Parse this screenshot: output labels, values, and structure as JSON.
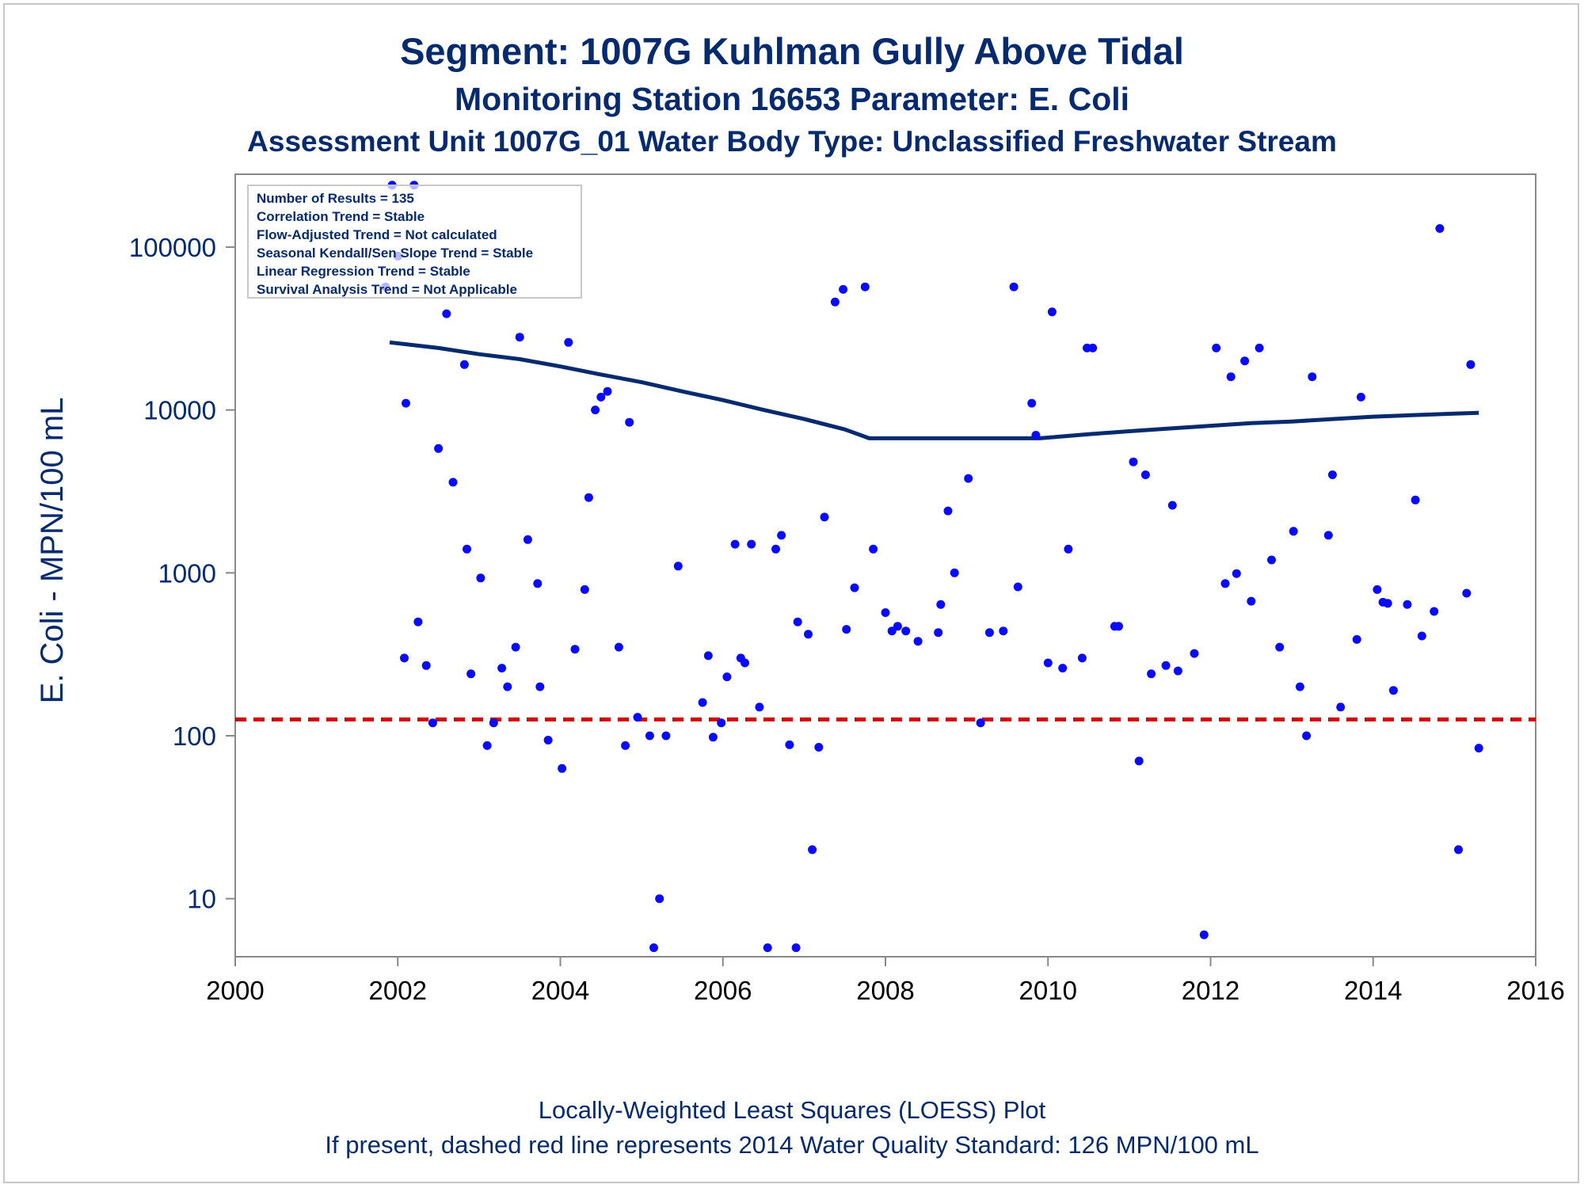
{
  "chart_data": {
    "type": "scatter",
    "title": "Segment: 1007G  Kuhlman Gully Above Tidal",
    "subtitle": "Monitoring Station 16653 Parameter: E. Coli",
    "subtitle2": "Assessment Unit 1007G_01   Water Body Type: Unclassified Freshwater Stream",
    "ylabel": "E. Coli - MPN/100 mL",
    "xlabel": "",
    "footnote1": "Locally-Weighted Least Squares (LOESS) Plot",
    "footnote2": "If present, dashed red line represents 2014 Water Quality Standard: 126 MPN/100 mL",
    "x_scale": "year",
    "y_scale": "log",
    "xlim": [
      2000,
      2016
    ],
    "ylim": [
      4.4,
      280000
    ],
    "x_ticks": [
      "2000",
      "2002",
      "2004",
      "2006",
      "2008",
      "2010",
      "2012",
      "2014",
      "2016"
    ],
    "y_ticks": [
      "10",
      "100",
      "1000",
      "10000",
      "100000"
    ],
    "grid": false,
    "legend": {
      "placement": "top-left",
      "lines": [
        "Number of Results = 135",
        "Correlation Trend = Stable",
        "Flow-Adjusted Trend = Not calculated",
        "Seasonal Kendall/Sen Slope Trend = Stable",
        "Linear Regression Trend = Stable",
        "Survival Analysis Trend = Not Applicable"
      ]
    },
    "colors": {
      "points": "#0a0aff",
      "loess": "#062a6e",
      "standard": "#d40000",
      "text": "#062a6e",
      "axis": "#888888"
    },
    "standard_line": {
      "value": 126,
      "style": "dashed"
    },
    "loess": {
      "name": "",
      "points": [
        [
          2001.9,
          26000
        ],
        [
          2002.5,
          24000
        ],
        [
          2003.0,
          22000
        ],
        [
          2003.5,
          20500
        ],
        [
          2004.0,
          18500
        ],
        [
          2004.5,
          16500
        ],
        [
          2005.0,
          14800
        ],
        [
          2005.5,
          13000
        ],
        [
          2006.0,
          11500
        ],
        [
          2006.5,
          10000
        ],
        [
          2007.0,
          8800
        ],
        [
          2007.5,
          7600
        ],
        [
          2007.8,
          6700
        ],
        [
          2008.5,
          6700
        ],
        [
          2009.2,
          6700
        ],
        [
          2009.9,
          6700
        ],
        [
          2010.5,
          7100
        ],
        [
          2011.0,
          7400
        ],
        [
          2011.5,
          7700
        ],
        [
          2012.0,
          8000
        ],
        [
          2012.5,
          8300
        ],
        [
          2013.0,
          8500
        ],
        [
          2013.5,
          8800
        ],
        [
          2014.0,
          9100
        ],
        [
          2014.5,
          9300
        ],
        [
          2015.0,
          9500
        ],
        [
          2015.3,
          9600
        ]
      ]
    },
    "series": [
      {
        "name": "",
        "x": [
          2001.93,
          2002.0,
          2002.08,
          2002.1,
          2002.2,
          2002.25,
          2002.35,
          2002.43,
          2002.5,
          2002.6,
          2002.68,
          2002.82,
          2002.85,
          2002.9,
          2003.02,
          2003.1,
          2003.18,
          2003.28,
          2003.35,
          2003.45,
          2003.5,
          2003.6,
          2003.72,
          2003.75,
          2003.85,
          2004.02,
          2004.1,
          2004.18,
          2004.3,
          2004.35,
          2004.43,
          2004.5,
          2004.58,
          2004.72,
          2004.8,
          2004.85,
          2004.95,
          2005.1,
          2005.15,
          2005.22,
          2005.3,
          2005.45,
          2005.75,
          2005.82,
          2005.88,
          2005.98,
          2006.05,
          2006.15,
          2006.22,
          2006.27,
          2006.35,
          2006.45,
          2006.55,
          2006.65,
          2006.72,
          2006.82,
          2006.9,
          2006.92,
          2007.05,
          2007.1,
          2007.18,
          2007.25,
          2007.38,
          2007.48,
          2007.52,
          2007.62,
          2007.75,
          2007.85,
          2008.0,
          2008.08,
          2008.15,
          2008.25,
          2008.4,
          2008.65,
          2008.68,
          2008.77,
          2008.85,
          2009.02,
          2009.17,
          2009.28,
          2009.45,
          2009.58,
          2009.63,
          2009.8,
          2009.85,
          2010.0,
          2010.05,
          2010.18,
          2010.25,
          2010.42,
          2010.48,
          2010.55,
          2010.82,
          2010.87,
          2011.05,
          2011.12,
          2011.2,
          2011.27,
          2011.45,
          2011.53,
          2011.6,
          2011.8,
          2011.92,
          2012.07,
          2012.18,
          2012.25,
          2012.32,
          2012.42,
          2012.5,
          2012.6,
          2012.75,
          2012.85,
          2013.02,
          2013.1,
          2013.18,
          2013.25,
          2013.45,
          2013.5,
          2013.6,
          2013.8,
          2013.85,
          2014.05,
          2014.12,
          2014.18,
          2014.25,
          2014.42,
          2014.52,
          2014.6,
          2014.75,
          2014.82,
          2015.05,
          2015.15,
          2015.2,
          2015.3,
          2001.85
        ],
        "y": [
          240000,
          88000,
          300,
          11000,
          240000,
          500,
          270,
          120,
          5800,
          39000,
          3600,
          19000,
          1400,
          240,
          930,
          87,
          120,
          260,
          200,
          350,
          28000,
          1600,
          860,
          200,
          94,
          63,
          26000,
          340,
          790,
          2900,
          10000,
          12000,
          13000,
          350,
          87,
          8400,
          130,
          100,
          5,
          10,
          100,
          1100,
          160,
          310,
          98,
          120,
          230,
          1500,
          300,
          280,
          1500,
          150,
          5,
          1400,
          1700,
          88,
          5,
          500,
          420,
          20,
          85,
          2200,
          46000,
          55000,
          450,
          810,
          57000,
          1400,
          570,
          440,
          470,
          440,
          380,
          430,
          640,
          2400,
          1000,
          3800,
          120,
          430,
          440,
          57000,
          820,
          11000,
          7000,
          280,
          40000,
          260,
          1400,
          300,
          24000,
          24000,
          470,
          470,
          4800,
          70,
          4000,
          240,
          270,
          2600,
          250,
          320,
          6,
          24000,
          860,
          16000,
          990,
          20000,
          670,
          24000,
          1200,
          350,
          1800,
          200,
          100,
          16000,
          1700,
          4000,
          150,
          390,
          12000,
          790,
          660,
          650,
          190,
          640,
          2800,
          410,
          580,
          130000,
          20,
          750,
          19000,
          84,
          57000
        ]
      }
    ]
  }
}
